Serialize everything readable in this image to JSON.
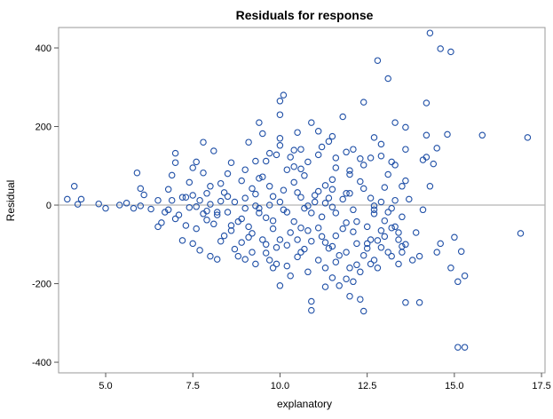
{
  "chart_data": {
    "type": "scatter",
    "title": "Residuals for response",
    "xlabel": "explanatory",
    "ylabel": "Residual",
    "xlim": [
      3.65,
      17.6
    ],
    "ylim": [
      -427,
      452
    ],
    "x_ticks": [
      5.0,
      7.5,
      10.0,
      12.5,
      15.0,
      17.5
    ],
    "x_tick_labels": [
      "5.0",
      "7.5",
      "10.0",
      "12.5",
      "15.0",
      "17.5"
    ],
    "y_ticks": [
      -400,
      -200,
      0,
      200,
      400
    ],
    "y_tick_labels": [
      "-400",
      "-200",
      "0",
      "200",
      "400"
    ],
    "reference_line_y": 0,
    "marker": "open-circle",
    "colors": {
      "marker": "#1f4fa6",
      "reference_line": "#b4b4b4",
      "frame": "#9a9a9a",
      "text": "#000000"
    },
    "grid": false,
    "legend": "none",
    "series": [
      {
        "points": [
          [
            3.9,
            15
          ],
          [
            4.1,
            48
          ],
          [
            4.2,
            2
          ],
          [
            4.3,
            15
          ],
          [
            4.8,
            3
          ],
          [
            5.0,
            -8
          ],
          [
            5.4,
            0
          ],
          [
            5.6,
            5
          ],
          [
            5.8,
            -8
          ],
          [
            5.9,
            82
          ],
          [
            6.0,
            -2
          ],
          [
            6.0,
            42
          ],
          [
            6.1,
            26
          ],
          [
            6.3,
            -10
          ],
          [
            6.5,
            12
          ],
          [
            6.6,
            -45
          ],
          [
            6.5,
            -55
          ],
          [
            6.8,
            40
          ],
          [
            6.9,
            76
          ],
          [
            6.8,
            -12
          ],
          [
            7.1,
            -25
          ],
          [
            7.2,
            -90
          ],
          [
            7.3,
            20
          ],
          [
            7.3,
            -52
          ],
          [
            7.5,
            25
          ],
          [
            7.5,
            -98
          ],
          [
            7.6,
            -4
          ],
          [
            7.7,
            12
          ],
          [
            7.7,
            -115
          ],
          [
            7.9,
            30
          ],
          [
            7.9,
            -38
          ],
          [
            8.0,
            -130
          ],
          [
            8.1,
            -48
          ],
          [
            8.2,
            -138
          ],
          [
            8.3,
            55
          ],
          [
            8.4,
            -78
          ],
          [
            8.5,
            22
          ],
          [
            8.6,
            -65
          ],
          [
            8.7,
            8
          ],
          [
            8.8,
            -130
          ],
          [
            8.9,
            -35
          ],
          [
            9.0,
            18
          ],
          [
            9.1,
            -82
          ],
          [
            9.2,
            42
          ],
          [
            9.3,
            -150
          ],
          [
            9.4,
            -20
          ],
          [
            9.5,
            72
          ],
          [
            9.6,
            -122
          ],
          [
            9.7,
            0
          ],
          [
            9.8,
            -60
          ],
          [
            9.9,
            -150
          ],
          [
            10.1,
            -12
          ],
          [
            10.2,
            90
          ],
          [
            10.3,
            -180
          ],
          [
            10.4,
            -42
          ],
          [
            10.5,
            32
          ],
          [
            10.6,
            -120
          ],
          [
            10.7,
            -8
          ],
          [
            10.8,
            -65
          ],
          [
            10.9,
            -245
          ],
          [
            11.0,
            25
          ],
          [
            11.1,
            -140
          ],
          [
            11.2,
            -30
          ],
          [
            11.3,
            50
          ],
          [
            11.4,
            -110
          ],
          [
            11.5,
            -5
          ],
          [
            11.6,
            -78
          ],
          [
            11.7,
            -205
          ],
          [
            11.8,
            15
          ],
          [
            11.9,
            -45
          ],
          [
            12.0,
            -160
          ],
          [
            12.1,
            -12
          ],
          [
            12.2,
            -98
          ],
          [
            12.3,
            -240
          ],
          [
            12.4,
            42
          ],
          [
            12.5,
            -55
          ],
          [
            12.6,
            -150
          ],
          [
            12.7,
            -22
          ],
          [
            12.8,
            -90
          ],
          [
            12.9,
            8
          ],
          [
            13.0,
            -40
          ],
          [
            13.1,
            -120
          ],
          [
            13.3,
            12
          ],
          [
            13.4,
            -70
          ],
          [
            13.5,
            -30
          ],
          [
            13.6,
            -100
          ],
          [
            13.8,
            -140
          ],
          [
            7.8,
            82
          ],
          [
            8.1,
            138
          ],
          [
            8.6,
            108
          ],
          [
            9.1,
            160
          ],
          [
            9.6,
            112
          ],
          [
            10.0,
            152
          ],
          [
            10.4,
            98
          ],
          [
            10.8,
            110
          ],
          [
            11.2,
            148
          ],
          [
            11.6,
            95
          ],
          [
            12.1,
            142
          ],
          [
            12.4,
            102
          ],
          [
            12.9,
            155
          ],
          [
            13.2,
            110
          ],
          [
            9.4,
            210
          ],
          [
            10.0,
            230
          ],
          [
            10.5,
            185
          ],
          [
            11.8,
            225
          ],
          [
            12.4,
            262
          ],
          [
            13.3,
            210
          ],
          [
            14.5,
            145
          ],
          [
            7.2,
            20
          ],
          [
            7.4,
            58
          ],
          [
            7.6,
            -60
          ],
          [
            7.9,
            -15
          ],
          [
            8.0,
            48
          ],
          [
            8.3,
            -92
          ],
          [
            8.5,
            -18
          ],
          [
            8.7,
            -112
          ],
          [
            8.9,
            62
          ],
          [
            9.1,
            -55
          ],
          [
            9.3,
            28
          ],
          [
            9.5,
            -88
          ],
          [
            9.7,
            48
          ],
          [
            9.9,
            -108
          ],
          [
            10.1,
            38
          ],
          [
            10.3,
            -70
          ],
          [
            10.5,
            -132
          ],
          [
            10.7,
            75
          ],
          [
            10.9,
            -92
          ],
          [
            11.1,
            35
          ],
          [
            11.3,
            -160
          ],
          [
            11.5,
            65
          ],
          [
            11.7,
            -128
          ],
          [
            11.9,
            30
          ],
          [
            12.1,
            -195
          ],
          [
            12.3,
            60
          ],
          [
            12.5,
            -110
          ],
          [
            12.7,
            -12
          ],
          [
            12.9,
            -65
          ],
          [
            13.1,
            78
          ],
          [
            13.4,
            -88
          ],
          [
            8.2,
            -18
          ],
          [
            8.4,
            32
          ],
          [
            8.8,
            -42
          ],
          [
            9.0,
            -8
          ],
          [
            9.2,
            -120
          ],
          [
            9.4,
            68
          ],
          [
            9.6,
            -32
          ],
          [
            9.8,
            22
          ],
          [
            10.0,
            -88
          ],
          [
            10.2,
            -18
          ],
          [
            10.4,
            58
          ],
          [
            10.6,
            -58
          ],
          [
            10.8,
            -170
          ],
          [
            11.0,
            8
          ],
          [
            11.2,
            -80
          ],
          [
            11.4,
            18
          ],
          [
            11.6,
            -145
          ],
          [
            11.8,
            -60
          ],
          [
            12.0,
            78
          ],
          [
            12.2,
            -42
          ],
          [
            12.4,
            -128
          ],
          [
            12.6,
            18
          ],
          [
            12.8,
            -160
          ],
          [
            13.0,
            -80
          ],
          [
            13.2,
            -8
          ],
          [
            10.1,
            280
          ],
          [
            10.0,
            265
          ],
          [
            10.9,
            210
          ],
          [
            11.1,
            188
          ],
          [
            12.8,
            368
          ],
          [
            13.1,
            322
          ],
          [
            13.6,
            198
          ],
          [
            14.1,
            115
          ],
          [
            14.2,
            178
          ],
          [
            14.4,
            105
          ],
          [
            14.8,
            180
          ],
          [
            14.3,
            438
          ],
          [
            14.6,
            398
          ],
          [
            14.9,
            390
          ],
          [
            15.8,
            178
          ],
          [
            17.1,
            172
          ],
          [
            16.9,
            -72
          ],
          [
            15.0,
            -82
          ],
          [
            15.2,
            -118
          ],
          [
            15.3,
            -180
          ],
          [
            15.1,
            -195
          ],
          [
            15.1,
            -362
          ],
          [
            15.3,
            -362
          ],
          [
            14.0,
            -248
          ],
          [
            13.6,
            -248
          ],
          [
            14.5,
            -120
          ],
          [
            14.6,
            -98
          ],
          [
            14.9,
            -160
          ],
          [
            13.9,
            -70
          ],
          [
            13.5,
            48
          ],
          [
            14.3,
            48
          ],
          [
            14.2,
            260
          ],
          [
            12.0,
            -232
          ],
          [
            11.3,
            -208
          ],
          [
            12.4,
            -270
          ],
          [
            10.9,
            -268
          ],
          [
            10.2,
            -155
          ],
          [
            10.0,
            -205
          ],
          [
            9.8,
            -160
          ],
          [
            9.0,
            -138
          ],
          [
            11.5,
            -185
          ],
          [
            11.9,
            -188
          ],
          [
            12.3,
            -170
          ],
          [
            12.5,
            -98
          ],
          [
            6.7,
            -18
          ],
          [
            6.9,
            12
          ],
          [
            7.0,
            -35
          ],
          [
            7.4,
            -6
          ],
          [
            7.8,
            -22
          ],
          [
            8.3,
            10
          ],
          [
            9.0,
            90
          ],
          [
            9.3,
            112
          ],
          [
            9.9,
            128
          ],
          [
            10.3,
            122
          ],
          [
            10.6,
            142
          ],
          [
            11.4,
            162
          ],
          [
            11.9,
            135
          ],
          [
            12.6,
            120
          ],
          [
            13.0,
            45
          ],
          [
            13.3,
            102
          ],
          [
            13.7,
            15
          ],
          [
            14.1,
            -12
          ],
          [
            8.2,
            -25
          ],
          [
            8.6,
            -52
          ],
          [
            9.4,
            -8
          ],
          [
            9.8,
            -40
          ],
          [
            10.6,
            20
          ],
          [
            10.9,
            -20
          ],
          [
            11.1,
            -58
          ],
          [
            11.6,
            -20
          ],
          [
            12.1,
            -68
          ],
          [
            12.9,
            -108
          ],
          [
            13.2,
            -130
          ],
          [
            13.5,
            -120
          ],
          [
            9.2,
            -72
          ],
          [
            9.6,
            -100
          ],
          [
            10.2,
            -102
          ],
          [
            10.7,
            -112
          ],
          [
            11.3,
            -95
          ],
          [
            11.9,
            -120
          ],
          [
            12.6,
            -88
          ],
          [
            13.3,
            -55
          ],
          [
            8.9,
            -95
          ],
          [
            9.7,
            -140
          ],
          [
            10.5,
            -88
          ],
          [
            11.5,
            -105
          ],
          [
            12.2,
            -152
          ],
          [
            12.7,
            -140
          ],
          [
            13.4,
            -150
          ],
          [
            13.5,
            -105
          ],
          [
            14.0,
            -130
          ],
          [
            9.3,
            -2
          ],
          [
            8.0,
            2
          ],
          [
            10.0,
            8
          ],
          [
            11.3,
            5
          ],
          [
            12.0,
            30
          ],
          [
            11.5,
            40
          ],
          [
            10.8,
            -2
          ],
          [
            12.7,
            -2
          ],
          [
            13.1,
            -18
          ],
          [
            13.6,
            62
          ],
          [
            13.2,
            -58
          ],
          [
            10.4,
            140
          ],
          [
            9.7,
            132
          ],
          [
            11.6,
            120
          ],
          [
            12.3,
            118
          ],
          [
            12.9,
            125
          ],
          [
            13.6,
            142
          ],
          [
            14.2,
            122
          ],
          [
            11.1,
            128
          ],
          [
            10.0,
            170
          ],
          [
            12.7,
            172
          ],
          [
            9.5,
            182
          ],
          [
            11.5,
            175
          ],
          [
            10.6,
            92
          ],
          [
            12.0,
            88
          ],
          [
            8.5,
            80
          ],
          [
            7.5,
            95
          ],
          [
            7.0,
            132
          ],
          [
            7.0,
            108
          ],
          [
            7.6,
            110
          ],
          [
            7.8,
            160
          ]
        ]
      }
    ]
  }
}
